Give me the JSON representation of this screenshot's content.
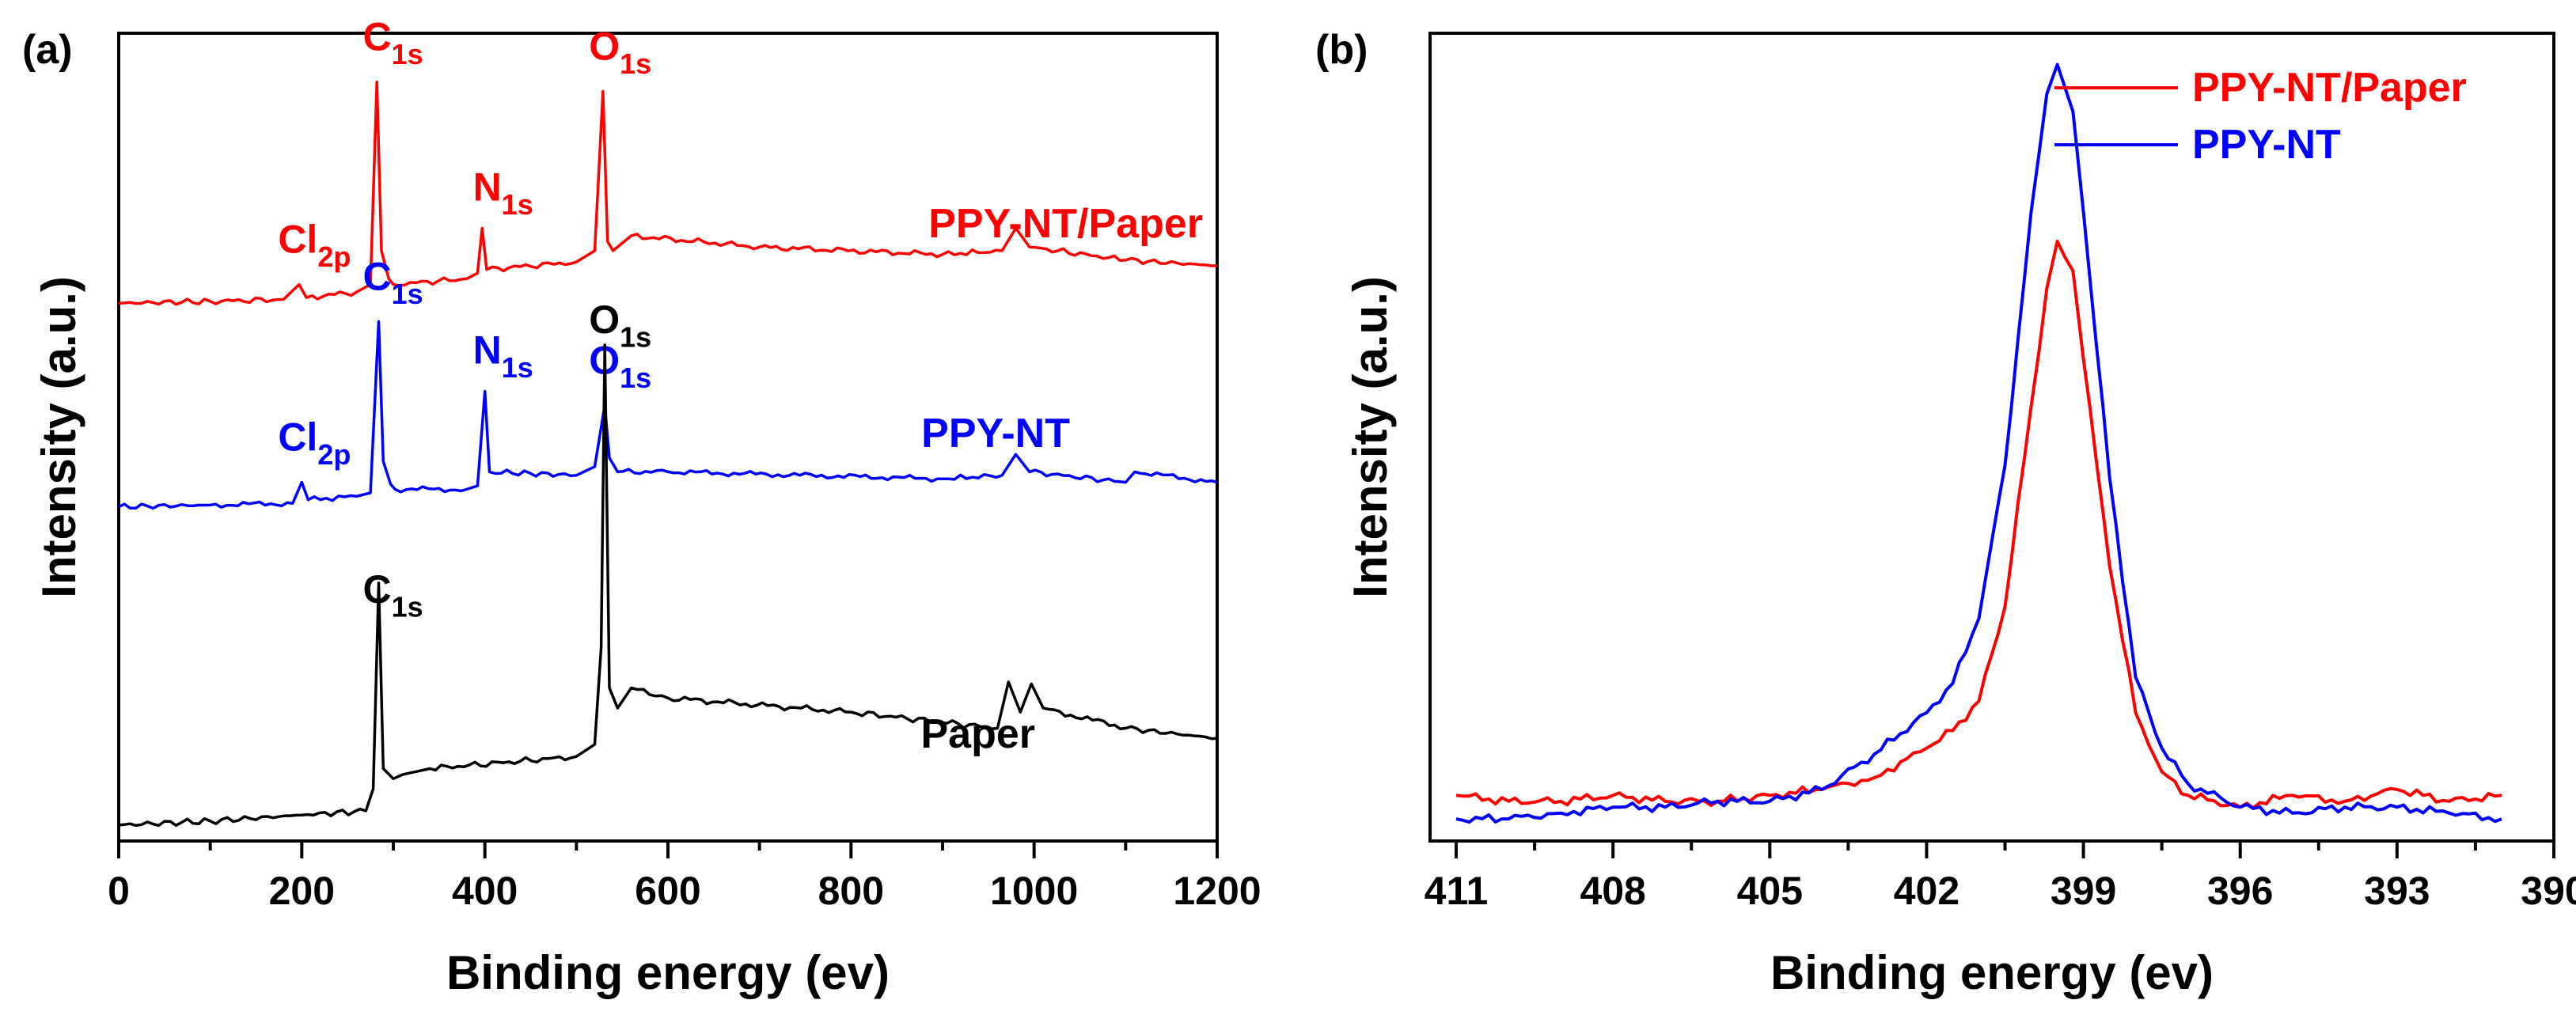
{
  "chart_data": [
    {
      "type": "line",
      "panel_label": "(a)",
      "xlabel": "Binding energy (ev)",
      "ylabel": "Intensity (a.u.)",
      "xlim": [
        0,
        1200
      ],
      "x_ticks": [
        "0",
        "200",
        "400",
        "600",
        "800",
        "1000",
        "1200"
      ],
      "y_ticks": [],
      "grid": false,
      "series": [
        {
          "name": "PPY-NT/Paper",
          "color": "#ff0000",
          "label_position": "right",
          "x": [
            0,
            100,
            180,
            197,
            205,
            260,
            275,
            282,
            287,
            295,
            300,
            380,
            392,
            397,
            402,
            500,
            520,
            529,
            534,
            540,
            560,
            700,
            900,
            965,
            980,
            995,
            1100,
            1200
          ],
          "y": [
            0.02,
            0.03,
            0.04,
            0.12,
            0.05,
            0.08,
            0.12,
            1.2,
            0.3,
            0.15,
            0.12,
            0.15,
            0.18,
            0.42,
            0.2,
            0.24,
            0.3,
            1.15,
            0.35,
            0.3,
            0.38,
            0.32,
            0.28,
            0.3,
            0.42,
            0.32,
            0.25,
            0.22
          ],
          "peaks": [
            {
              "label": "Cl",
              "subscript": "2p",
              "x": 200
            },
            {
              "label": "C",
              "subscript": "1s",
              "x": 284
            },
            {
              "label": "N",
              "subscript": "1s",
              "x": 400
            },
            {
              "label": "O",
              "subscript": "1s",
              "x": 531
            }
          ]
        },
        {
          "name": "PPY-NT",
          "color": "#0000ff",
          "label_position": "right",
          "x": [
            0,
            100,
            190,
            200,
            207,
            260,
            275,
            284,
            289,
            297,
            302,
            380,
            392,
            400,
            405,
            500,
            520,
            531,
            536,
            545,
            600,
            900,
            965,
            980,
            995,
            1100,
            1110,
            1200
          ],
          "y": [
            0.02,
            0.03,
            0.04,
            0.16,
            0.06,
            0.08,
            0.1,
            1.08,
            0.28,
            0.15,
            0.12,
            0.12,
            0.14,
            0.68,
            0.22,
            0.2,
            0.25,
            0.6,
            0.3,
            0.22,
            0.22,
            0.18,
            0.2,
            0.32,
            0.22,
            0.16,
            0.22,
            0.16
          ],
          "peaks": [
            {
              "label": "Cl",
              "subscript": "2p",
              "x": 200
            },
            {
              "label": "C",
              "subscript": "1s",
              "x": 284
            },
            {
              "label": "N",
              "subscript": "1s",
              "x": 400
            },
            {
              "label": "O",
              "subscript": "1s",
              "x": 531
            }
          ]
        },
        {
          "name": "Paper",
          "color": "#000000",
          "label_position": "right",
          "x": [
            0,
            100,
            200,
            270,
            278,
            284,
            289,
            300,
            310,
            340,
            500,
            520,
            527,
            531,
            536,
            545,
            560,
            600,
            800,
            960,
            972,
            985,
            997,
            1010,
            1100,
            1200
          ],
          "y": [
            0.02,
            0.04,
            0.07,
            0.09,
            0.2,
            1.22,
            0.3,
            0.25,
            0.27,
            0.3,
            0.36,
            0.42,
            0.9,
            2.4,
            0.7,
            0.6,
            0.7,
            0.65,
            0.58,
            0.5,
            0.73,
            0.58,
            0.72,
            0.6,
            0.5,
            0.45
          ],
          "peaks": [
            {
              "label": "C",
              "subscript": "1s",
              "x": 284
            },
            {
              "label": "O",
              "subscript": "1s",
              "x": 531
            }
          ]
        }
      ]
    },
    {
      "type": "line",
      "panel_label": "(b)",
      "xlabel": "Binding energy (ev)",
      "ylabel": "Intensity (a.u.)",
      "xlim": [
        411.5,
        390
      ],
      "x_ticks": [
        "411",
        "408",
        "405",
        "402",
        "399",
        "396",
        "393",
        "390"
      ],
      "y_ticks": [],
      "grid": false,
      "legend_position": "top-right",
      "series": [
        {
          "name": "PPY-NT/Paper",
          "color": "#ff0000",
          "x": [
            411,
            410,
            409,
            408,
            407,
            406,
            405,
            404,
            403,
            402,
            401.5,
            401,
            400.5,
            400,
            399.7,
            399.5,
            399.2,
            399,
            398.5,
            398,
            397.5,
            397,
            396,
            395,
            394,
            393,
            392,
            391
          ],
          "y": [
            0.06,
            0.05,
            0.05,
            0.06,
            0.05,
            0.05,
            0.06,
            0.07,
            0.09,
            0.14,
            0.17,
            0.22,
            0.38,
            0.72,
            0.92,
            1.0,
            0.95,
            0.8,
            0.45,
            0.2,
            0.1,
            0.06,
            0.04,
            0.06,
            0.05,
            0.07,
            0.05,
            0.06
          ]
        },
        {
          "name": "PPY-NT",
          "color": "#0000ff",
          "x": [
            411,
            410,
            409,
            408,
            407,
            406,
            405,
            404,
            403,
            402,
            401.5,
            401,
            400.5,
            400,
            399.7,
            399.5,
            399.2,
            399,
            398.5,
            398,
            397.5,
            397,
            396,
            395,
            394,
            393,
            392,
            391
          ],
          "y": [
            0.02,
            0.02,
            0.03,
            0.04,
            0.04,
            0.05,
            0.05,
            0.07,
            0.13,
            0.2,
            0.25,
            0.36,
            0.62,
            1.05,
            1.25,
            1.3,
            1.22,
            1.05,
            0.6,
            0.26,
            0.14,
            0.08,
            0.04,
            0.03,
            0.04,
            0.04,
            0.03,
            0.02
          ]
        }
      ]
    }
  ]
}
